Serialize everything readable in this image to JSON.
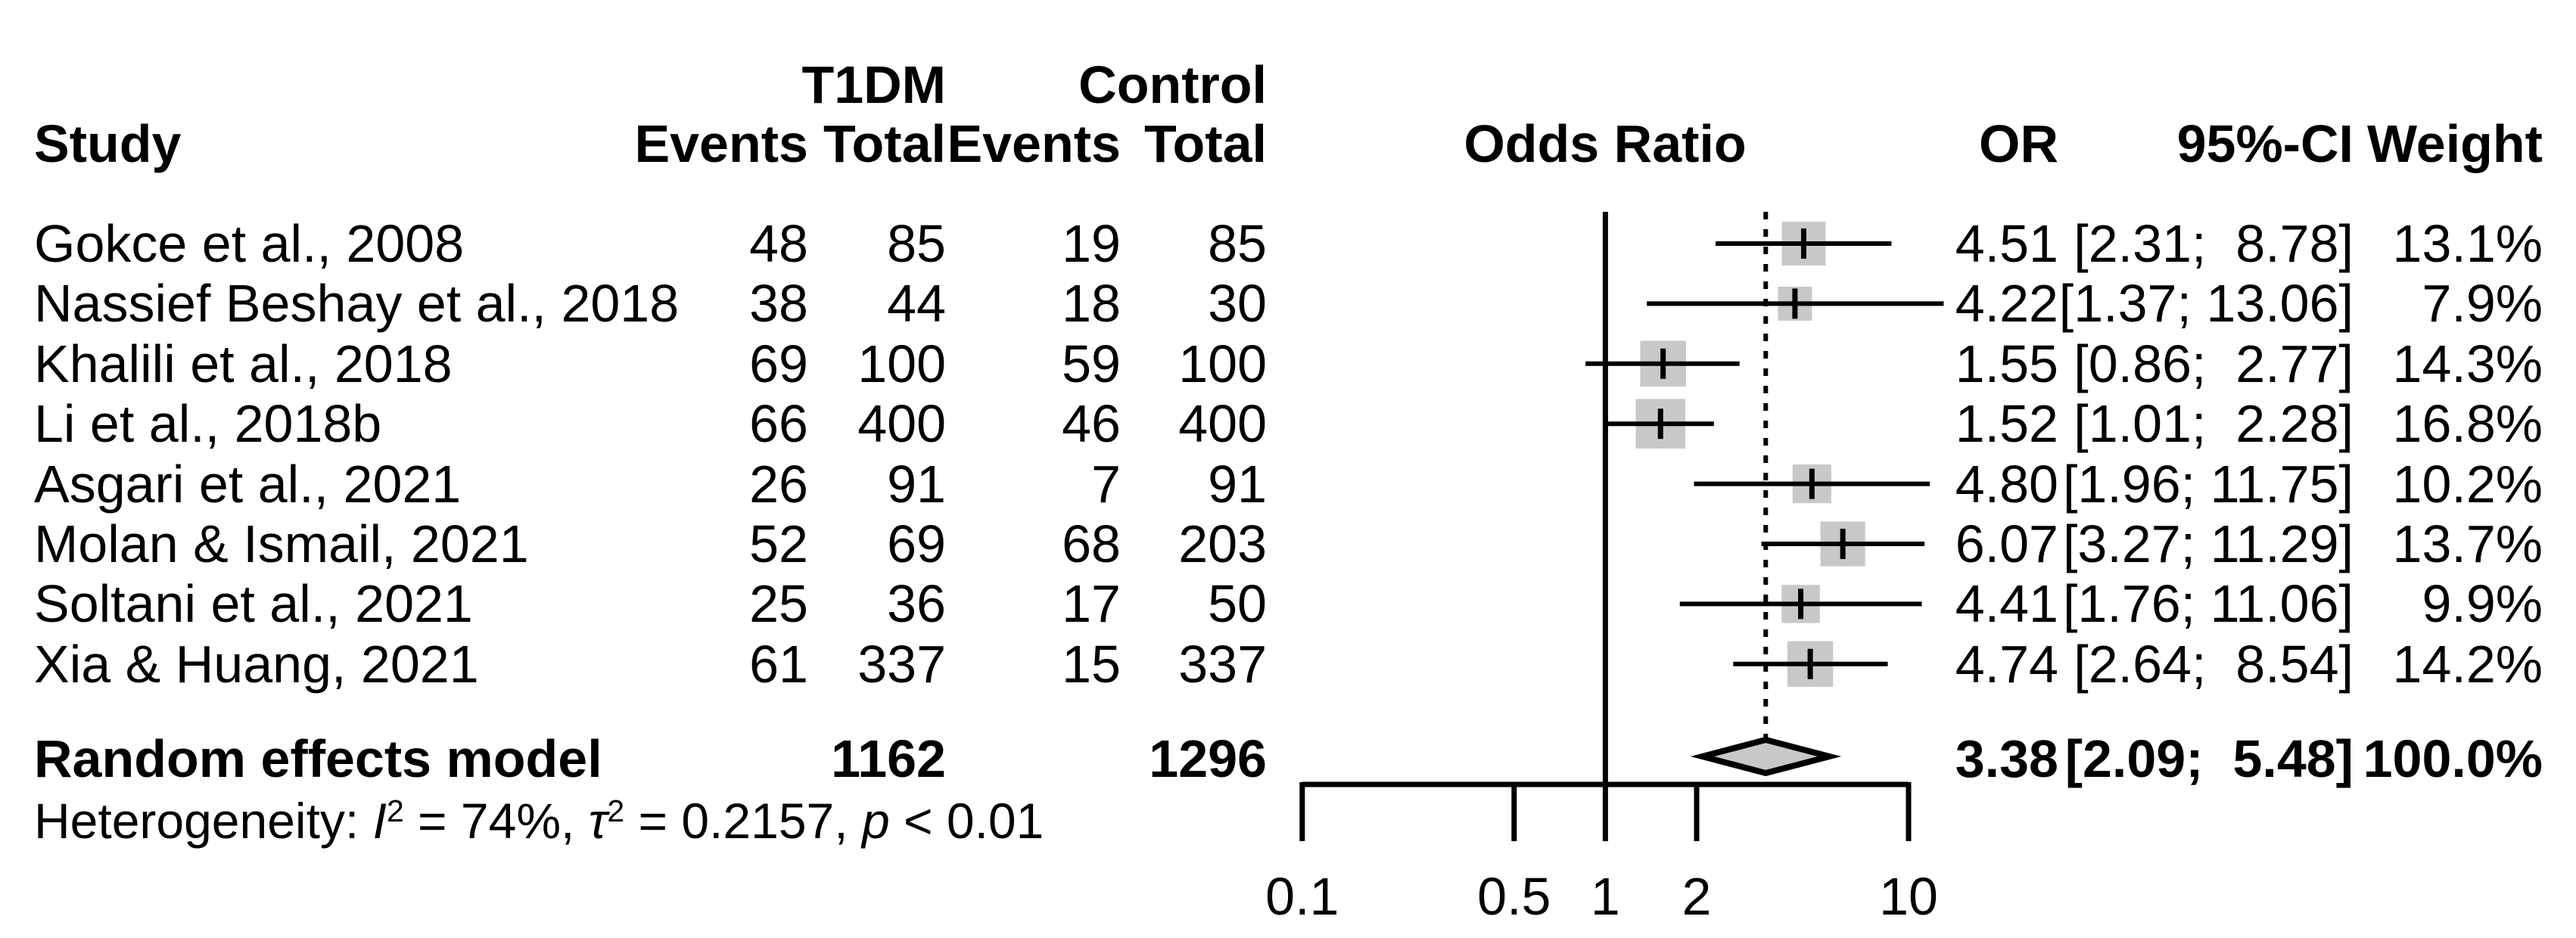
{
  "header": {
    "study": "Study",
    "group1": "T1DM",
    "group2": "Control",
    "events1": "Events",
    "total1": "Total",
    "events2": "Events",
    "total2": "Total",
    "odds_ratio": "Odds Ratio",
    "or": "OR",
    "ci": "95%-CI",
    "weight": "Weight"
  },
  "heterogeneity": {
    "prefix": "Heterogeneity: ",
    "i_sym": "I",
    "i_sup": "2",
    "i_val": " = 74%, ",
    "tau_sym": "τ",
    "tau_sup": "2",
    "tau_val": " = 0.2157, ",
    "p_sym": "p",
    "p_val": " < 0.01"
  },
  "colors": {
    "square_fill": "#c8c8c8",
    "diamond_fill": "#c8c8c8",
    "line": "#000000"
  },
  "chart_data": {
    "type": "forest",
    "x_scale": "log10",
    "xlim": [
      0.1,
      10
    ],
    "ticks": [
      0.1,
      0.5,
      1,
      2,
      10
    ],
    "tick_labels": [
      "0.1",
      "0.5",
      "1",
      "2",
      "10"
    ],
    "reference_line": 1,
    "pooled_dashed_line": 3.38,
    "studies": [
      {
        "name": "Gokce et al., 2008",
        "t1dm_events": "48",
        "t1dm_total": "85",
        "control_events": "19",
        "control_total": "85",
        "or": 4.51,
        "ci_low": 2.31,
        "ci_high": 8.78,
        "weight_pct": 13.1,
        "or_text": "4.51",
        "ci_text": "[2.31;  8.78]",
        "weight_text": "13.1%"
      },
      {
        "name": "Nassief Beshay et al., 2018",
        "t1dm_events": "38",
        "t1dm_total": "44",
        "control_events": "18",
        "control_total": "30",
        "or": 4.22,
        "ci_low": 1.37,
        "ci_high": 13.06,
        "weight_pct": 7.9,
        "or_text": "4.22",
        "ci_text": "[1.37; 13.06]",
        "weight_text": "7.9%"
      },
      {
        "name": "Khalili et al., 2018",
        "t1dm_events": "69",
        "t1dm_total": "100",
        "control_events": "59",
        "control_total": "100",
        "or": 1.55,
        "ci_low": 0.86,
        "ci_high": 2.77,
        "weight_pct": 14.3,
        "or_text": "1.55",
        "ci_text": "[0.86;  2.77]",
        "weight_text": "14.3%"
      },
      {
        "name": "Li et al., 2018b",
        "t1dm_events": "66",
        "t1dm_total": "400",
        "control_events": "46",
        "control_total": "400",
        "or": 1.52,
        "ci_low": 1.01,
        "ci_high": 2.28,
        "weight_pct": 16.8,
        "or_text": "1.52",
        "ci_text": "[1.01;  2.28]",
        "weight_text": "16.8%"
      },
      {
        "name": "Asgari et al., 2021",
        "t1dm_events": "26",
        "t1dm_total": "91",
        "control_events": "7",
        "control_total": "91",
        "or": 4.8,
        "ci_low": 1.96,
        "ci_high": 11.75,
        "weight_pct": 10.2,
        "or_text": "4.80",
        "ci_text": "[1.96; 11.75]",
        "weight_text": "10.2%"
      },
      {
        "name": "Molan & Ismail, 2021",
        "t1dm_events": "52",
        "t1dm_total": "69",
        "control_events": "68",
        "control_total": "203",
        "or": 6.07,
        "ci_low": 3.27,
        "ci_high": 11.29,
        "weight_pct": 13.7,
        "or_text": "6.07",
        "ci_text": "[3.27; 11.29]",
        "weight_text": "13.7%"
      },
      {
        "name": "Soltani et al., 2021",
        "t1dm_events": "25",
        "t1dm_total": "36",
        "control_events": "17",
        "control_total": "50",
        "or": 4.41,
        "ci_low": 1.76,
        "ci_high": 11.06,
        "weight_pct": 9.9,
        "or_text": "4.41",
        "ci_text": "[1.76; 11.06]",
        "weight_text": "9.9%"
      },
      {
        "name": "Xia & Huang, 2021",
        "t1dm_events": "61",
        "t1dm_total": "337",
        "control_events": "15",
        "control_total": "337",
        "or": 4.74,
        "ci_low": 2.64,
        "ci_high": 8.54,
        "weight_pct": 14.2,
        "or_text": "4.74",
        "ci_text": "[2.64;  8.54]",
        "weight_text": "14.2%"
      }
    ],
    "summary": {
      "label": "Random effects model",
      "t1dm_total": "1162",
      "control_total": "1296",
      "or": 3.38,
      "ci_low": 2.09,
      "ci_high": 5.48,
      "or_text": "3.38",
      "ci_text": "[2.09;  5.48]",
      "weight_text": "100.0%"
    }
  }
}
